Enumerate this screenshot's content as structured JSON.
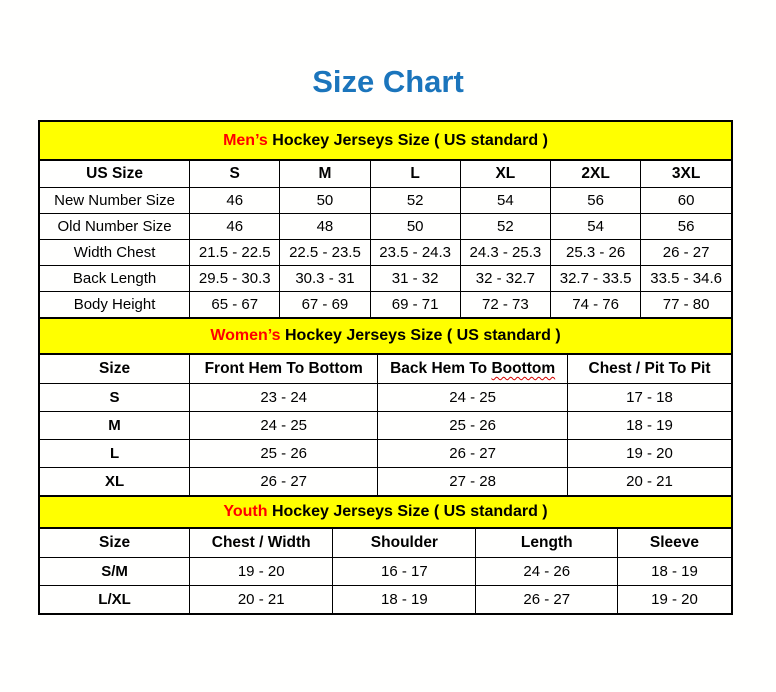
{
  "page": {
    "title": "Size Chart"
  },
  "colors": {
    "title_blue": "#1b75bc",
    "section_header_yellow": "#ffff00",
    "section_highlight_red": "#ff0000",
    "border_black": "#000000",
    "spellcheck_red": "#d40000"
  },
  "tables": [
    {
      "name": "mens",
      "section_title": {
        "highlight": "Men’s",
        "rest": " Hockey Jerseys Size ( US standard )"
      },
      "columns": [
        "US Size",
        "S",
        "M",
        "L",
        "XL",
        "2XL",
        "3XL"
      ],
      "rows": [
        {
          "label": "New Number Size",
          "values": [
            "46",
            "50",
            "52",
            "54",
            "56",
            "60"
          ]
        },
        {
          "label": "Old Number Size",
          "values": [
            "46",
            "48",
            "50",
            "52",
            "54",
            "56"
          ]
        },
        {
          "label": "Width Chest",
          "values": [
            "21.5 - 22.5",
            "22.5 - 23.5",
            "23.5 - 24.3",
            "24.3 - 25.3",
            "25.3 - 26",
            "26 - 27"
          ]
        },
        {
          "label": "Back Length",
          "values": [
            "29.5 - 30.3",
            "30.3 - 31",
            "31 - 32",
            "32 - 32.7",
            "32.7 - 33.5",
            "33.5 - 34.6"
          ]
        },
        {
          "label": "Body Height",
          "values": [
            "65 - 67",
            "67 - 69",
            "69 - 71",
            "72 - 73",
            "74 - 76",
            "77 - 80"
          ]
        }
      ]
    },
    {
      "name": "womens",
      "section_title": {
        "highlight": "Women’s",
        "rest": " Hockey Jerseys Size ( US standard )"
      },
      "columns": [
        "Size",
        "Front Hem To Bottom",
        "Back Hem To Boottom",
        "Chest / Pit To Pit"
      ],
      "misspell": {
        "column_index": 2,
        "word": "Boottom"
      },
      "rows": [
        {
          "label": "S",
          "values": [
            "23 - 24",
            "24 - 25",
            "17 - 18"
          ]
        },
        {
          "label": "M",
          "values": [
            "24 - 25",
            "25 - 26",
            "18 - 19"
          ]
        },
        {
          "label": "L",
          "values": [
            "25 - 26",
            "26 - 27",
            "19 - 20"
          ]
        },
        {
          "label": "XL",
          "values": [
            "26 - 27",
            "27 - 28",
            "20 - 21"
          ]
        }
      ]
    },
    {
      "name": "youth",
      "section_title": {
        "highlight": "Youth",
        "rest": " Hockey Jerseys Size ( US standard )"
      },
      "columns": [
        "Size",
        "Chest / Width",
        "Shoulder",
        "Length",
        "Sleeve"
      ],
      "rows": [
        {
          "label": "S/M",
          "values": [
            "19 - 20",
            "16 - 17",
            "24 - 26",
            "18 - 19"
          ]
        },
        {
          "label": "L/XL",
          "values": [
            "20 - 21",
            "18 - 19",
            "26 - 27",
            "19 - 20"
          ]
        }
      ]
    }
  ]
}
